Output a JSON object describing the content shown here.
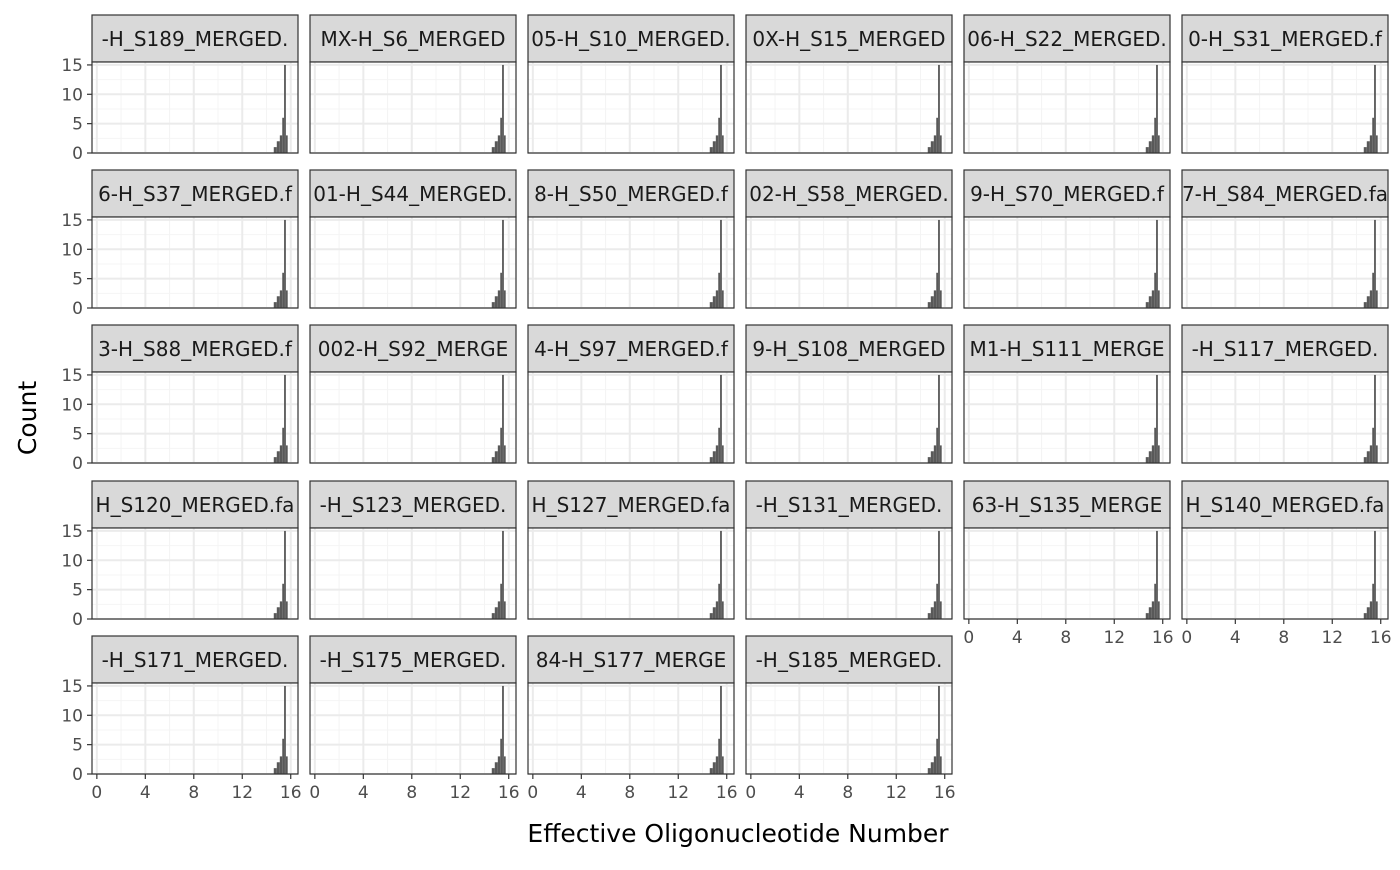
{
  "chart_data": {
    "type": "bar",
    "layout": "faceted histogram grid, 6 columns x 5 rows (28 panels)",
    "xlabel": "Effective Oligonucleotide Number",
    "ylabel": "Count",
    "xlim": [
      -0.4,
      16.6
    ],
    "ylim": [
      0,
      15.5
    ],
    "x_ticks": [
      0,
      4,
      8,
      12,
      16
    ],
    "y_ticks": [
      0,
      5,
      10,
      15
    ],
    "grid": true,
    "bins": [
      {
        "x0": 14.6,
        "x1": 14.85
      },
      {
        "x0": 14.85,
        "x1": 15.1
      },
      {
        "x0": 15.1,
        "x1": 15.3
      },
      {
        "x0": 15.3,
        "x1": 15.45
      },
      {
        "x0": 15.45,
        "x1": 15.6
      },
      {
        "x0": 15.6,
        "x1": 15.75
      }
    ],
    "panels": [
      {
        "label": "-H_S189_MERGED.",
        "counts": [
          1,
          2,
          3,
          6,
          15,
          3
        ],
        "x_axis_shown": false
      },
      {
        "label": "MX-H_S6_MERGED",
        "counts": [
          1,
          2,
          3,
          6,
          15,
          3
        ],
        "x_axis_shown": false
      },
      {
        "label": "05-H_S10_MERGED.",
        "counts": [
          1,
          2,
          3,
          6,
          15,
          3
        ],
        "x_axis_shown": false
      },
      {
        "label": "0X-H_S15_MERGED",
        "counts": [
          1,
          2,
          3,
          6,
          15,
          3
        ],
        "x_axis_shown": false
      },
      {
        "label": "06-H_S22_MERGED.",
        "counts": [
          1,
          2,
          3,
          6,
          15,
          3
        ],
        "x_axis_shown": false
      },
      {
        "label": "0-H_S31_MERGED.f",
        "counts": [
          1,
          2,
          3,
          6,
          15,
          3
        ],
        "x_axis_shown": false
      },
      {
        "label": "6-H_S37_MERGED.f",
        "counts": [
          1,
          2,
          3,
          6,
          15,
          3
        ],
        "x_axis_shown": false
      },
      {
        "label": "01-H_S44_MERGED.",
        "counts": [
          1,
          2,
          3,
          6,
          15,
          3
        ],
        "x_axis_shown": false
      },
      {
        "label": "8-H_S50_MERGED.f",
        "counts": [
          1,
          2,
          3,
          6,
          15,
          3
        ],
        "x_axis_shown": false
      },
      {
        "label": "02-H_S58_MERGED.",
        "counts": [
          1,
          2,
          3,
          6,
          15,
          3
        ],
        "x_axis_shown": false
      },
      {
        "label": "9-H_S70_MERGED.f",
        "counts": [
          1,
          2,
          3,
          6,
          15,
          3
        ],
        "x_axis_shown": false
      },
      {
        "label": "7-H_S84_MERGED.fa",
        "counts": [
          1,
          2,
          3,
          6,
          15,
          3
        ],
        "x_axis_shown": false
      },
      {
        "label": "3-H_S88_MERGED.f",
        "counts": [
          1,
          2,
          3,
          6,
          15,
          3
        ],
        "x_axis_shown": false
      },
      {
        "label": "002-H_S92_MERGE",
        "counts": [
          1,
          2,
          3,
          6,
          15,
          3
        ],
        "x_axis_shown": false
      },
      {
        "label": "4-H_S97_MERGED.f",
        "counts": [
          1,
          2,
          3,
          6,
          15,
          3
        ],
        "x_axis_shown": false
      },
      {
        "label": "9-H_S108_MERGED",
        "counts": [
          1,
          2,
          3,
          6,
          15,
          3
        ],
        "x_axis_shown": false
      },
      {
        "label": "M1-H_S111_MERGE",
        "counts": [
          1,
          2,
          3,
          6,
          15,
          3
        ],
        "x_axis_shown": false
      },
      {
        "label": "-H_S117_MERGED.",
        "counts": [
          1,
          2,
          3,
          6,
          15,
          3
        ],
        "x_axis_shown": false
      },
      {
        "label": "H_S120_MERGED.fa",
        "counts": [
          1,
          2,
          3,
          6,
          15,
          3
        ],
        "x_axis_shown": false
      },
      {
        "label": "-H_S123_MERGED.",
        "counts": [
          1,
          2,
          3,
          6,
          15,
          3
        ],
        "x_axis_shown": false
      },
      {
        "label": "H_S127_MERGED.fa",
        "counts": [
          1,
          2,
          3,
          6,
          15,
          3
        ],
        "x_axis_shown": false
      },
      {
        "label": "-H_S131_MERGED.",
        "counts": [
          1,
          2,
          3,
          6,
          15,
          3
        ],
        "x_axis_shown": false
      },
      {
        "label": "63-H_S135_MERGE",
        "counts": [
          1,
          2,
          3,
          6,
          15,
          3
        ],
        "x_axis_shown": true
      },
      {
        "label": "H_S140_MERGED.fa",
        "counts": [
          1,
          2,
          3,
          6,
          15,
          3
        ],
        "x_axis_shown": true
      },
      {
        "label": "-H_S171_MERGED.",
        "counts": [
          1,
          2,
          3,
          6,
          15,
          3
        ],
        "x_axis_shown": true
      },
      {
        "label": "-H_S175_MERGED.",
        "counts": [
          1,
          2,
          3,
          6,
          15,
          3
        ],
        "x_axis_shown": true
      },
      {
        "label": "84-H_S177_MERGE",
        "counts": [
          1,
          2,
          3,
          6,
          15,
          3
        ],
        "x_axis_shown": true
      },
      {
        "label": "-H_S185_MERGED.",
        "counts": [
          1,
          2,
          3,
          6,
          15,
          3
        ],
        "x_axis_shown": true
      }
    ]
  },
  "colors": {
    "bar": "#595959",
    "strip_fill": "#d9d9d9",
    "panel_border": "#333333",
    "grid_major": "#ebebeb",
    "grid_minor": "#f4f4f4",
    "tick_text": "#4d4d4d"
  }
}
